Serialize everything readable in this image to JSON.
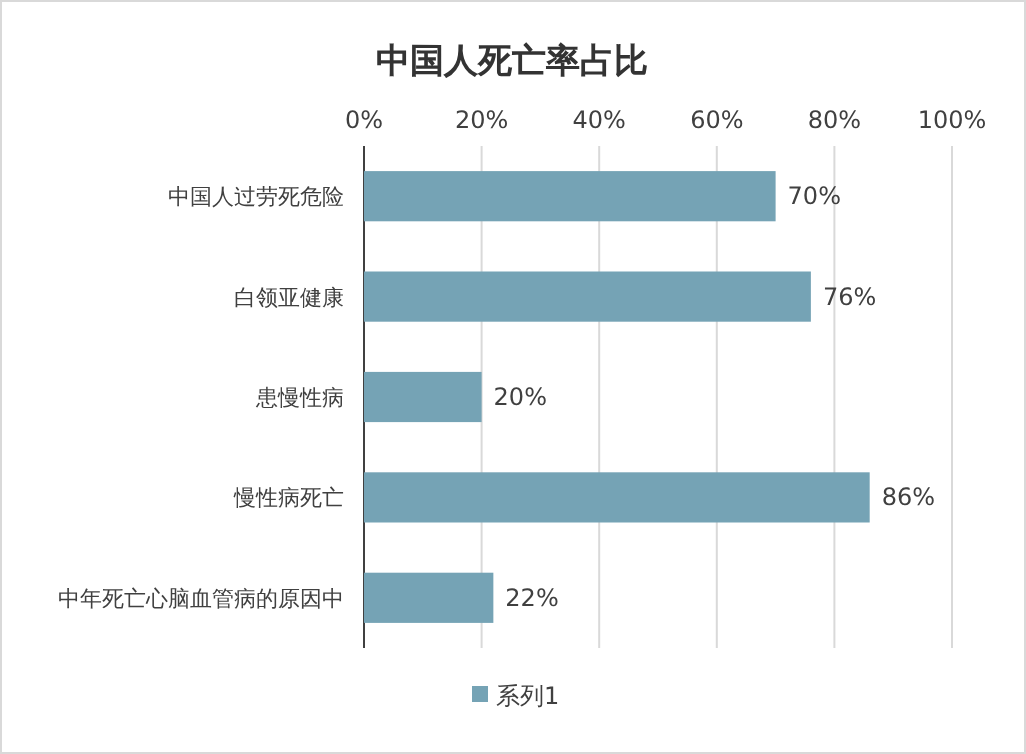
{
  "chart_data": {
    "type": "bar",
    "orientation": "horizontal",
    "title": "中国人死亡率占比",
    "categories": [
      "中国人过劳死危险",
      "白领亚健康",
      "患慢性病",
      "慢性病死亡",
      "中年死亡心脑血管病的原因中"
    ],
    "series": [
      {
        "name": "系列1",
        "color": "#75a3b5",
        "values": [
          70,
          76,
          20,
          86,
          22
        ],
        "value_labels": [
          "70%",
          "76%",
          "20%",
          "86%",
          "22%"
        ]
      }
    ],
    "xlim": [
      0,
      100
    ],
    "xticks": [
      {
        "value": 0,
        "label": "0%"
      },
      {
        "value": 20,
        "label": "20%"
      },
      {
        "value": 40,
        "label": "40%"
      },
      {
        "value": 60,
        "label": "60%"
      },
      {
        "value": 80,
        "label": "80%"
      },
      {
        "value": 100,
        "label": "100%"
      }
    ],
    "grid": "x",
    "legend": "bottom"
  }
}
